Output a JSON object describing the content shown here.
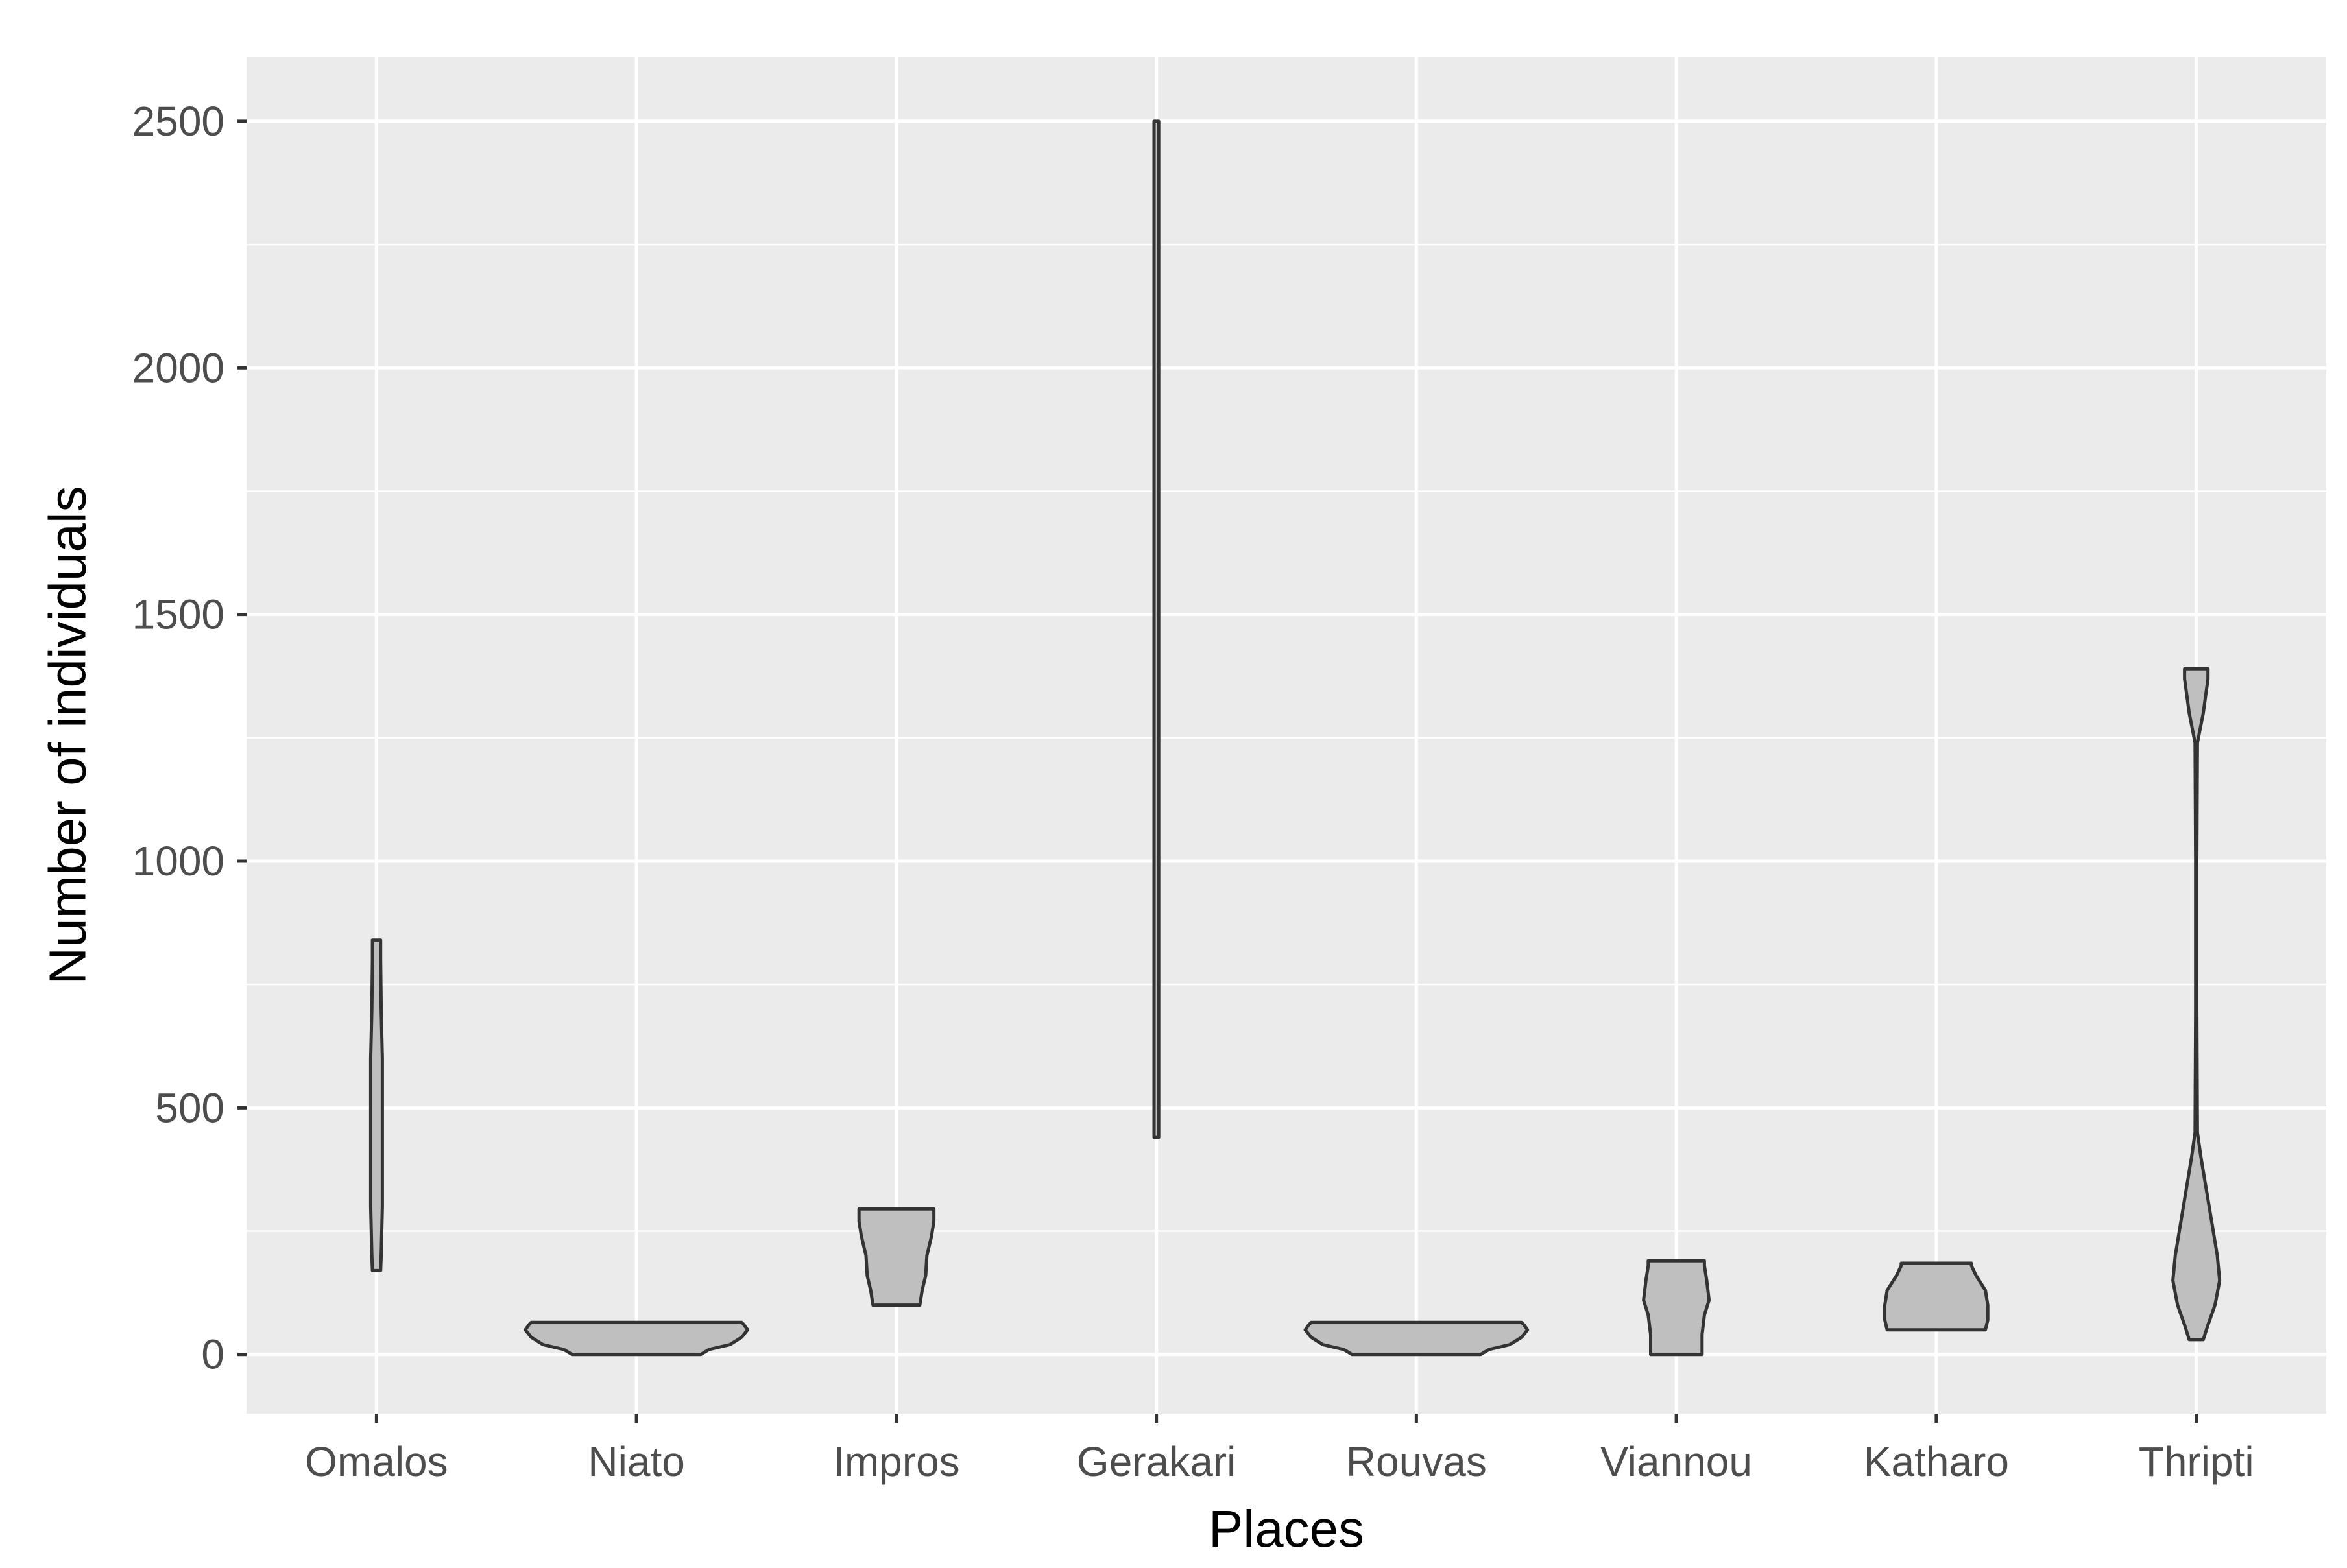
{
  "chart_data": {
    "type": "violin",
    "xlabel": "Places",
    "ylabel": "Number of individuals",
    "ylim": [
      -120,
      2630
    ],
    "yticks": [
      0,
      500,
      1000,
      1500,
      2000,
      2500
    ],
    "ytick_labels": [
      "0",
      "500",
      "1000",
      "1500",
      "2000",
      "2500"
    ],
    "grid": true,
    "legend": "none",
    "categories": [
      "Omalos",
      "Niato",
      "Impros",
      "Gerakari",
      "Rouvas",
      "Viannou",
      "Katharo",
      "Thripti"
    ],
    "violins": [
      {
        "category": "Omalos",
        "min": 170,
        "max": 840,
        "profile": [
          [
            170,
            0.035
          ],
          [
            200,
            0.04
          ],
          [
            300,
            0.05
          ],
          [
            400,
            0.05
          ],
          [
            500,
            0.05
          ],
          [
            600,
            0.05
          ],
          [
            700,
            0.04
          ],
          [
            800,
            0.035
          ],
          [
            840,
            0.035
          ]
        ]
      },
      {
        "category": "Niato",
        "min": 0,
        "max": 65,
        "profile": [
          [
            0,
            0.55
          ],
          [
            10,
            0.62
          ],
          [
            20,
            0.8
          ],
          [
            35,
            0.9
          ],
          [
            50,
            0.95
          ],
          [
            60,
            0.92
          ],
          [
            65,
            0.9
          ]
        ]
      },
      {
        "category": "Impros",
        "min": 100,
        "max": 295,
        "profile": [
          [
            100,
            0.2
          ],
          [
            130,
            0.22
          ],
          [
            160,
            0.25
          ],
          [
            200,
            0.26
          ],
          [
            240,
            0.3
          ],
          [
            270,
            0.32
          ],
          [
            295,
            0.32
          ]
        ]
      },
      {
        "category": "Gerakari",
        "min": 440,
        "max": 2500,
        "profile": [
          [
            440,
            0.02
          ],
          [
            1000,
            0.02
          ],
          [
            1500,
            0.02
          ],
          [
            2000,
            0.02
          ],
          [
            2500,
            0.02
          ]
        ]
      },
      {
        "category": "Rouvas",
        "min": 0,
        "max": 65,
        "profile": [
          [
            0,
            0.55
          ],
          [
            10,
            0.62
          ],
          [
            20,
            0.8
          ],
          [
            35,
            0.9
          ],
          [
            50,
            0.95
          ],
          [
            60,
            0.92
          ],
          [
            65,
            0.9
          ]
        ]
      },
      {
        "category": "Viannou",
        "min": 0,
        "max": 190,
        "profile": [
          [
            0,
            0.22
          ],
          [
            40,
            0.22
          ],
          [
            80,
            0.24
          ],
          [
            110,
            0.28
          ],
          [
            150,
            0.26
          ],
          [
            180,
            0.24
          ],
          [
            190,
            0.24
          ]
        ]
      },
      {
        "category": "Katharo",
        "min": 50,
        "max": 185,
        "profile": [
          [
            50,
            0.42
          ],
          [
            70,
            0.44
          ],
          [
            100,
            0.44
          ],
          [
            130,
            0.42
          ],
          [
            160,
            0.34
          ],
          [
            180,
            0.3
          ],
          [
            185,
            0.3
          ]
        ]
      },
      {
        "category": "Thripti",
        "min": 30,
        "max": 1390,
        "profile": [
          [
            30,
            0.06
          ],
          [
            60,
            0.1
          ],
          [
            100,
            0.16
          ],
          [
            150,
            0.2
          ],
          [
            200,
            0.18
          ],
          [
            300,
            0.11
          ],
          [
            400,
            0.04
          ],
          [
            450,
            0.01
          ],
          [
            700,
            0.005
          ],
          [
            1000,
            0.005
          ],
          [
            1240,
            0.01
          ],
          [
            1300,
            0.06
          ],
          [
            1370,
            0.1
          ],
          [
            1390,
            0.1
          ]
        ]
      }
    ]
  }
}
